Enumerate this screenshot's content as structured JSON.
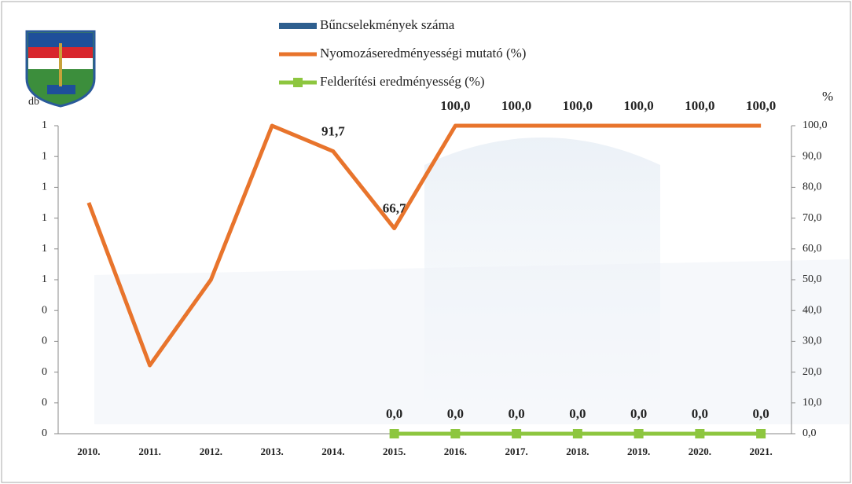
{
  "chart_data": {
    "type": "bar-line",
    "y_label": "db",
    "y2_label": "%",
    "categories": [
      "2010.",
      "2011.",
      "2012.",
      "2013.",
      "2014.",
      "2015.",
      "2016.",
      "2017.",
      "2018.",
      "2019.",
      "2020.",
      "2021."
    ],
    "series": [
      {
        "name": "Bűncselekmények száma",
        "type": "bar",
        "color": "#2e5f8f",
        "values": [
          null,
          null,
          null,
          null,
          null,
          null,
          null,
          null,
          null,
          null,
          null,
          null
        ]
      },
      {
        "name": "Nyomozáseredményességi mutató (%)",
        "type": "line",
        "axis": "y2",
        "color": "#e8742c",
        "values": [
          75,
          22.2,
          50,
          100,
          91.7,
          66.7,
          100,
          100,
          100,
          100,
          100,
          100
        ],
        "value_labels": [
          null,
          null,
          null,
          null,
          "91,7",
          "66,7",
          "100,0",
          "100,0",
          "100,0",
          "100,0",
          "100,0",
          "100,0"
        ]
      },
      {
        "name": "Felderítési eredményesség (%)",
        "type": "line",
        "axis": "y2",
        "color": "#8dc63f",
        "values": [
          null,
          null,
          null,
          null,
          null,
          0,
          0,
          0,
          0,
          0,
          0,
          0
        ],
        "value_labels": [
          null,
          null,
          null,
          null,
          null,
          "0,0",
          "0,0",
          "0,0",
          "0,0",
          "0,0",
          "0,0",
          "0,0"
        ]
      }
    ],
    "ylim": [
      0,
      1
    ],
    "yticks": [
      {
        "value": 0,
        "label": "0"
      },
      {
        "value": 0.1,
        "label": "0"
      },
      {
        "value": 0.2,
        "label": "0"
      },
      {
        "value": 0.3,
        "label": "0"
      },
      {
        "value": 0.4,
        "label": "0"
      },
      {
        "value": 0.5,
        "label": "1"
      },
      {
        "value": 0.6,
        "label": "1"
      },
      {
        "value": 0.7,
        "label": "1"
      },
      {
        "value": 0.8,
        "label": "1"
      },
      {
        "value": 0.9,
        "label": "1"
      },
      {
        "value": 1,
        "label": "1"
      }
    ],
    "y2lim": [
      0,
      100
    ],
    "y2ticks": [
      {
        "value": 0,
        "label": "0,0"
      },
      {
        "value": 10,
        "label": "10,0"
      },
      {
        "value": 20,
        "label": "20,0"
      },
      {
        "value": 30,
        "label": "30,0"
      },
      {
        "value": 40,
        "label": "40,0"
      },
      {
        "value": 50,
        "label": "50,0"
      },
      {
        "value": 60,
        "label": "60,0"
      },
      {
        "value": 70,
        "label": "70,0"
      },
      {
        "value": 80,
        "label": "80,0"
      },
      {
        "value": 90,
        "label": "90,0"
      },
      {
        "value": 100,
        "label": "100,0"
      }
    ]
  }
}
